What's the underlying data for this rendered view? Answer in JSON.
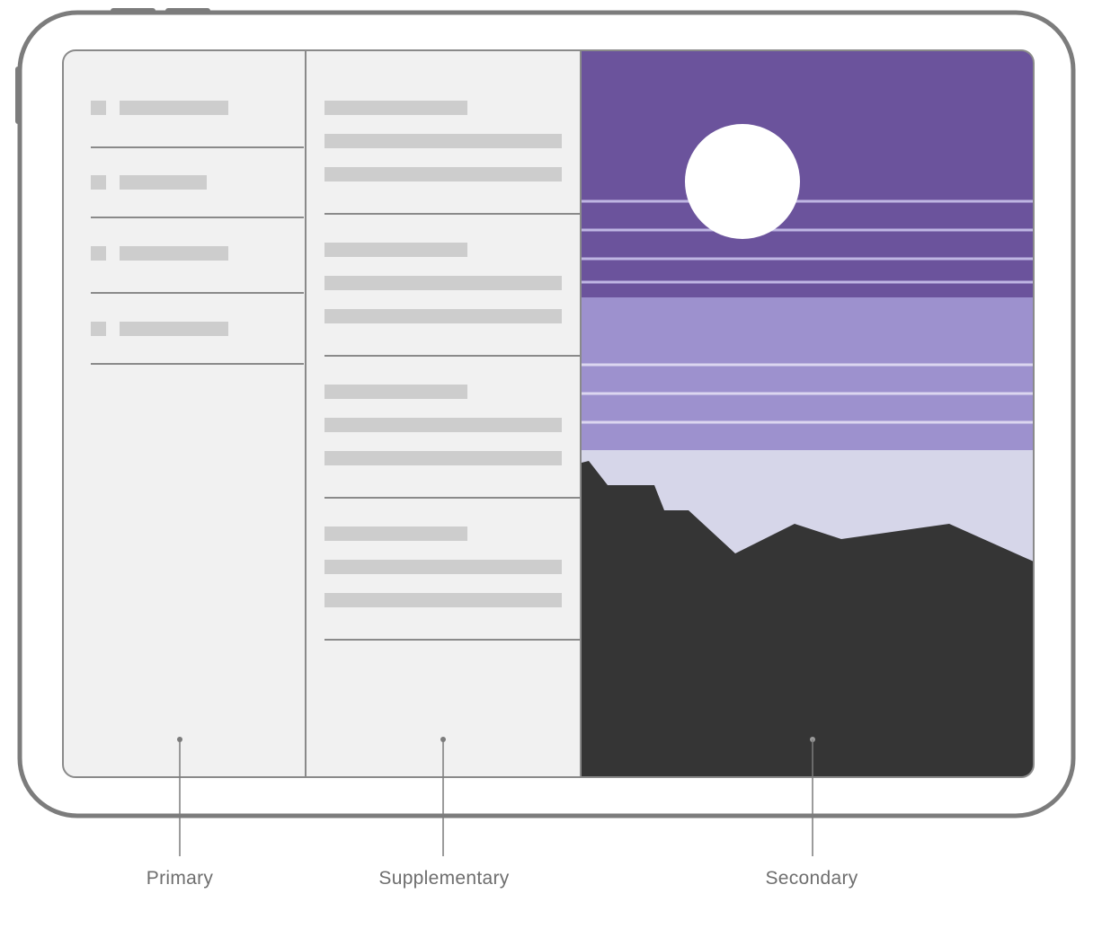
{
  "labels": {
    "primary": "Primary",
    "supplementary": "Supplementary",
    "secondary": "Secondary"
  },
  "colors": {
    "device_frame": "#7c7c7c",
    "pane_background": "#f1f1f1",
    "placeholder": "#cdcdcd",
    "divider": "#8a8a8a",
    "sky_top": "#6b539c",
    "sky_middle": "#9d91ce",
    "sky_bottom": "#d6d6e9",
    "sun": "#ffffff",
    "stripe": "#bfb6e3",
    "mountains": "#353535",
    "label_text": "#6e6e6e"
  },
  "icons": [
    "list-item-icon",
    "sun-icon",
    "mountains-icon"
  ]
}
